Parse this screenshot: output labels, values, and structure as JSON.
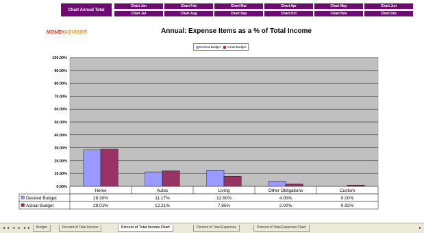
{
  "nav": {
    "annual": "Chart Annual Total",
    "months": [
      "Chart Jan",
      "Chart Feb",
      "Chart Mar",
      "Chart Apr",
      "Chart May",
      "Chart Jun",
      "Chart Jul",
      "Chart Aug",
      "Chart Sep",
      "Chart Oct",
      "Chart Nov",
      "Chart Dec"
    ]
  },
  "logo": {
    "part1": "MONEY",
    "part2": "ADVISOR"
  },
  "colors": {
    "desired": "#9999ff",
    "actual": "#993366",
    "plot_bg": "#c0c0c0",
    "nav_bg": "#6e0b73"
  },
  "chart_data": {
    "type": "bar",
    "title": "Annual: Expense Items as a % of Total Income",
    "categories": [
      "Home",
      "Autos",
      "Living",
      "Other Obligations",
      "Custom"
    ],
    "series": [
      {
        "name": "Desired Budget",
        "values": [
          28.3,
          11.17,
          12.6,
          4.0,
          0.0
        ],
        "labels": [
          "28.30%",
          "11.17%",
          "12.60%",
          "4.00%",
          "0.00%"
        ]
      },
      {
        "name": "Actual Budget",
        "values": [
          29.01,
          12.21,
          7.85,
          2.0,
          0.92
        ],
        "labels": [
          "29.01%",
          "12.21%",
          "7.85%",
          "2.00%",
          "0.92%"
        ]
      }
    ],
    "ylim": [
      0,
      100
    ],
    "yticks": [
      "0.00%",
      "10.00%",
      "20.00%",
      "30.00%",
      "40.00%",
      "50.00%",
      "60.00%",
      "70.00%",
      "80.00%",
      "90.00%",
      "100.00%"
    ],
    "grid": true,
    "legend": "top",
    "legend_labels": [
      "Desired Budget",
      "Actual Budget"
    ],
    "data_table": true
  },
  "tabs": {
    "arrows": "◄◄ ◄ ► ►►",
    "items": [
      "Budget",
      "Percent of Total Income",
      "Percent of Total Income Chart",
      "Percent of Total Expenses",
      "Percent of Total Expenses Chart"
    ],
    "active": 2
  }
}
